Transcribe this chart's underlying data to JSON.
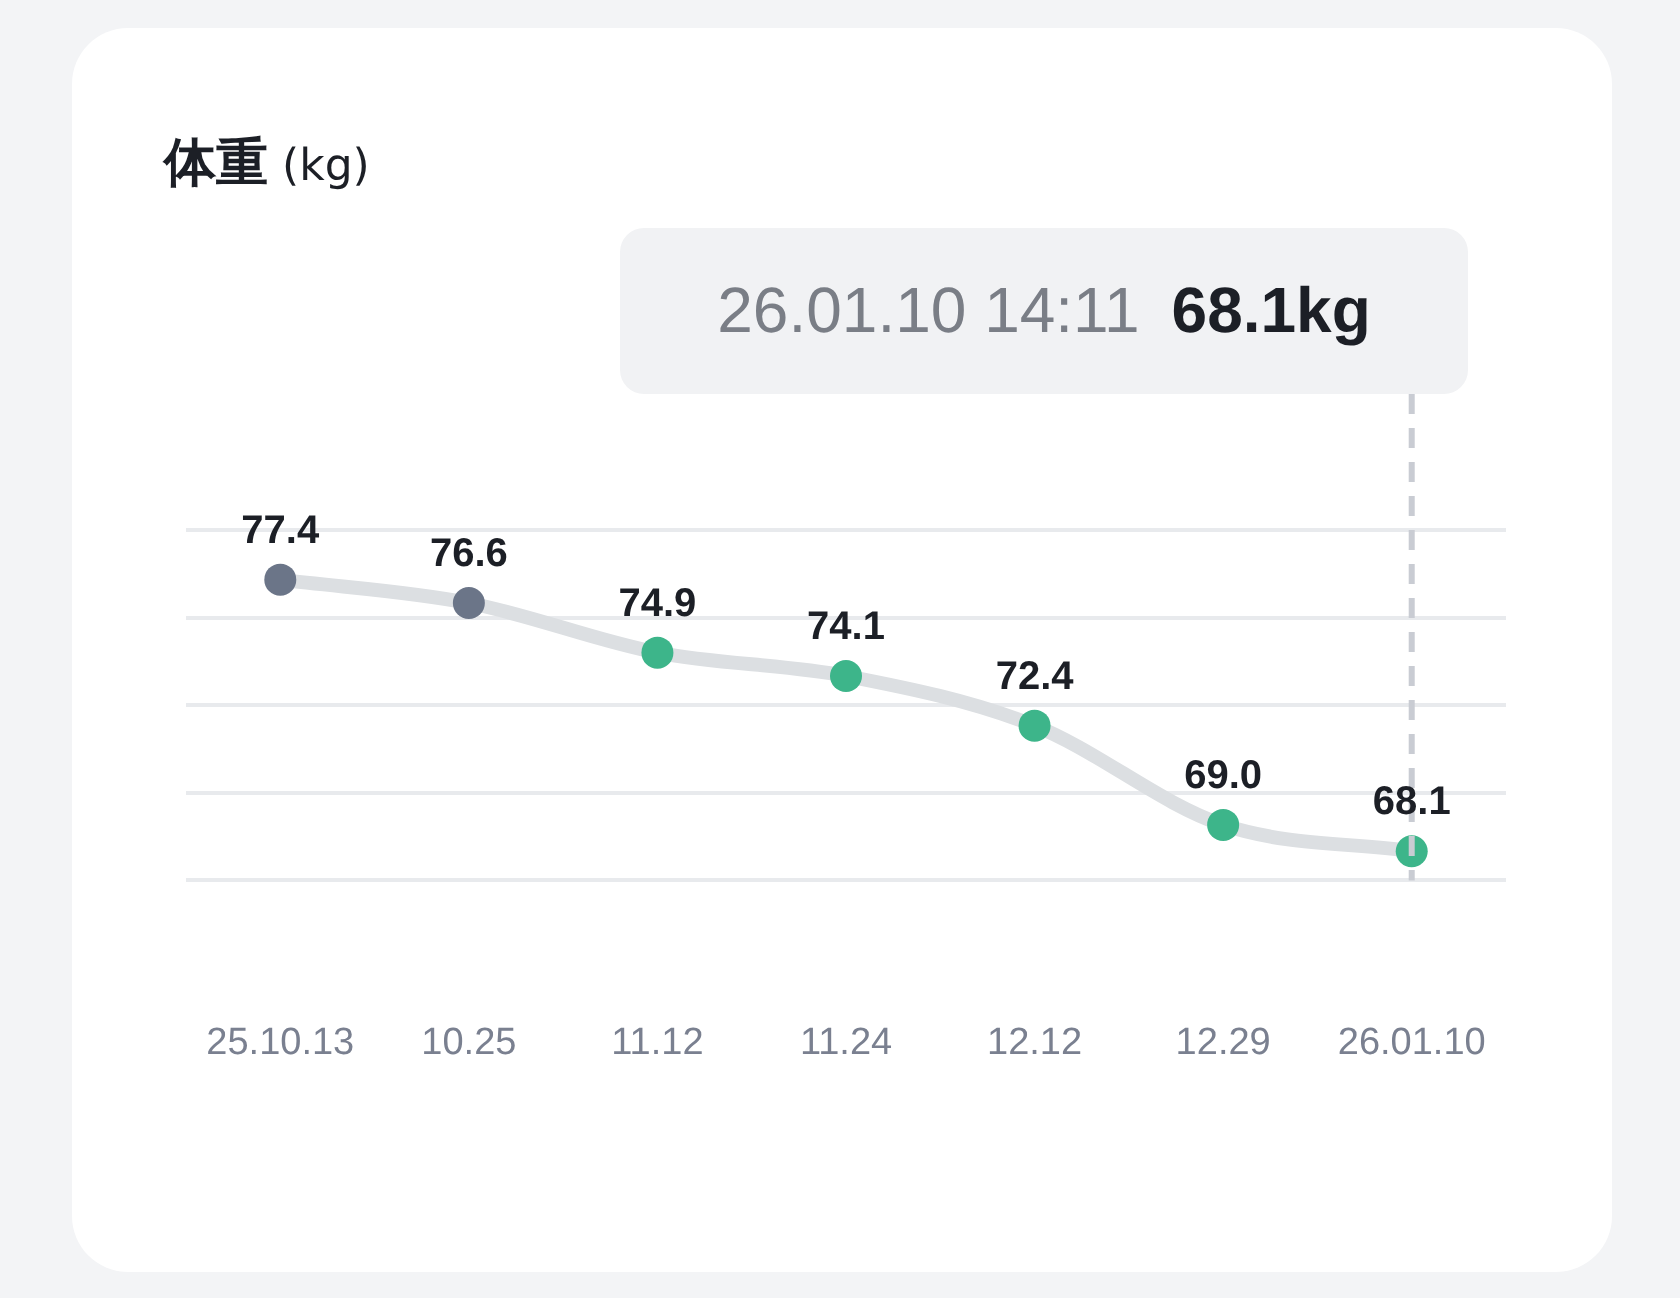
{
  "chart_data": {
    "type": "line",
    "title": "体重 (kg)",
    "categories": [
      "25.10.13",
      "10.25",
      "11.12",
      "11.24",
      "12.12",
      "12.29",
      "26.01.10"
    ],
    "series": [
      {
        "color": "#dcdfe2",
        "colors": [
          "#6b7588",
          "#6b7588",
          "#3db58a",
          "#3db58a",
          "#3db58a",
          "#3db58a",
          "#3db58a"
        ],
        "values": [
          77.4,
          76.6,
          74.9,
          74.1,
          72.4,
          69.0,
          68.1
        ],
        "value_labels": [
          "77.4",
          "76.6",
          "74.9",
          "74.1",
          "72.4",
          "69.0",
          "68.1"
        ]
      }
    ],
    "ylim": [
      67.1,
      79.1
    ],
    "yticks": [
      {
        "value": 67.1,
        "label": null
      },
      {
        "value": 70.1,
        "label": null
      },
      {
        "value": 73.1,
        "label": null
      },
      {
        "value": 76.1,
        "label": null
      },
      {
        "value": 79.1,
        "label": null
      }
    ],
    "grid": "y",
    "tick_labels": "x",
    "marker": "circle",
    "legend": false,
    "ref_lines": [
      {
        "axis": "x",
        "value": "26.01.10",
        "color": "#c9ccd3",
        "line_style": "dashed"
      }
    ],
    "annotations": [
      "26.01.10 14:11",
      "68.1kg"
    ]
  }
}
